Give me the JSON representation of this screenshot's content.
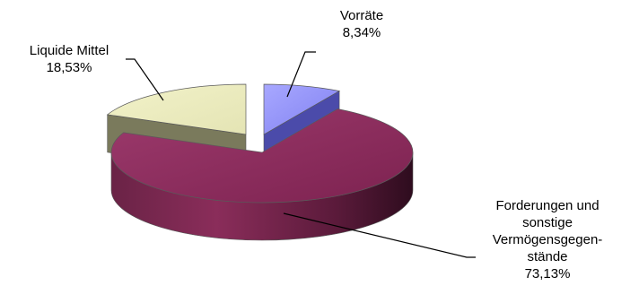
{
  "chart_data": {
    "type": "pie",
    "style": "3d",
    "title": "",
    "legend": "none",
    "slices": [
      {
        "name_lines": [
          "Vorräte"
        ],
        "value": 8.34,
        "value_label": "8,34%",
        "color": "#9999ff"
      },
      {
        "name_lines": [
          "Forderungen und",
          "sonstige",
          "Vermögensgegen-",
          "stände"
        ],
        "value": 73.13,
        "value_label": "73,13%",
        "color": "#993366"
      },
      {
        "name_lines": [
          "Liquide Mittel"
        ],
        "value": 18.53,
        "value_label": "18,53%",
        "color": "#ffffcc"
      }
    ]
  }
}
